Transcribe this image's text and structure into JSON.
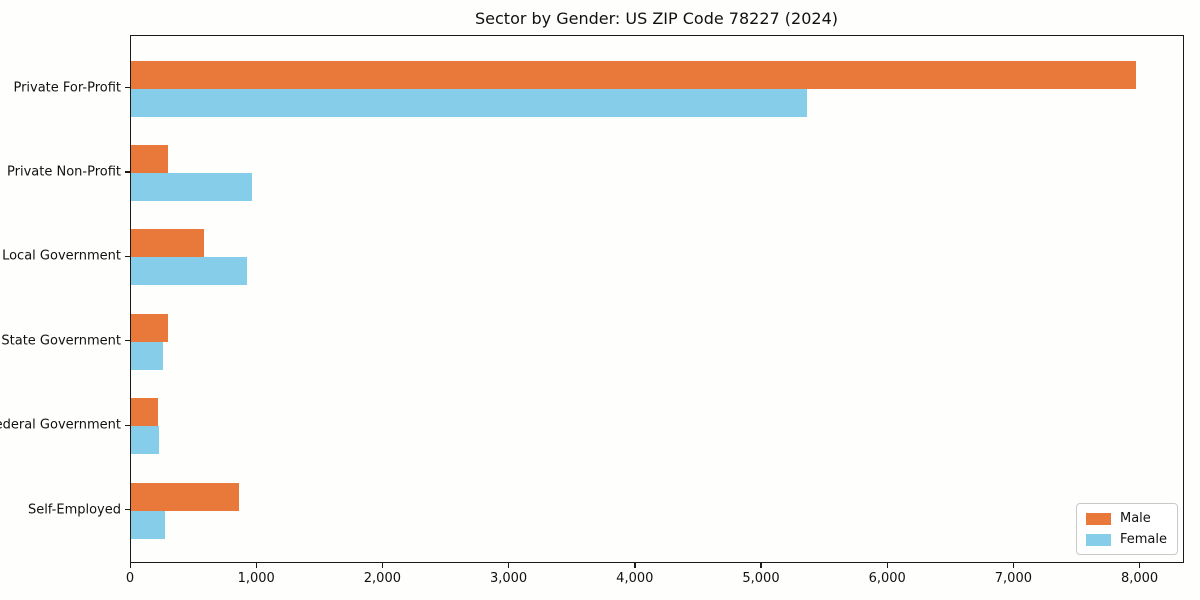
{
  "chart_data": {
    "type": "bar",
    "orientation": "horizontal",
    "title": "Sector by Gender: US ZIP Code 78227 (2024)",
    "categories": [
      "Private For-Profit",
      "Private Non-Profit",
      "Local Government",
      "State Government",
      "Federal Government",
      "Self-Employed"
    ],
    "series": [
      {
        "name": "Male",
        "color": "#e8793a",
        "values": [
          7960,
          290,
          580,
          290,
          215,
          855
        ]
      },
      {
        "name": "Female",
        "color": "#85cde8",
        "values": [
          5360,
          960,
          920,
          250,
          220,
          270
        ]
      }
    ],
    "xlabel": "",
    "ylabel": "",
    "xlim": [
      0,
      8352
    ],
    "xticks": [
      0,
      1000,
      2000,
      3000,
      4000,
      5000,
      6000,
      7000,
      8000
    ],
    "xtick_labels": [
      "0",
      "1,000",
      "2,000",
      "3,000",
      "4,000",
      "5,000",
      "6,000",
      "7,000",
      "8,000"
    ],
    "grid": false,
    "background_color": "#fefefc",
    "axis_color": "#1a1a1a",
    "legend": {
      "position": "lower right",
      "entries": [
        "Male",
        "Female"
      ]
    }
  }
}
